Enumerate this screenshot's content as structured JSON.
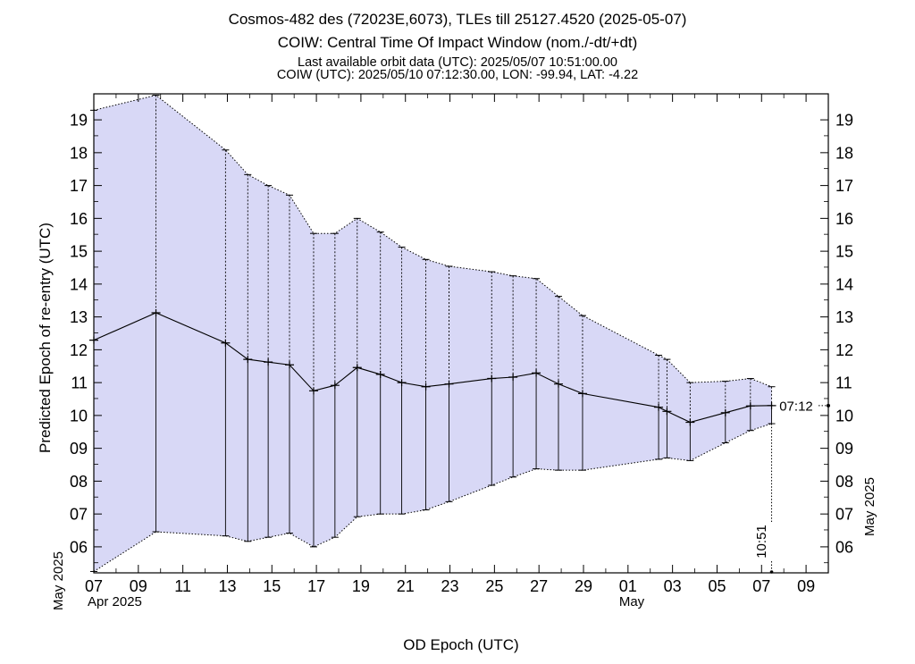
{
  "header": {
    "title": "Cosmos-482 des (72023E,6073), TLEs till 25127.4520 (2025-05-07)",
    "subtitle": "COIW: Central Time Of Impact Window (nom./-dt/+dt)",
    "last_orbit": "Last available orbit data (UTC): 2025/05/07 10:51:00.00",
    "coiw": "COIW (UTC): 2025/05/10 07:12:30.00, LON: -99.94, LAT: -4.22"
  },
  "colors": {
    "window_fill": "#d8d8f6",
    "line": "#000000",
    "background": "#ffffff"
  },
  "chart_data": {
    "type": "line",
    "title": "Cosmos-482 des (72023E,6073), TLEs till 25127.4520 (2025-05-07)",
    "xlabel": "OD Epoch (UTC)",
    "ylabel": "Predicted Epoch of re-entry (UTC)",
    "y2label": "May 2025",
    "y_month_label": "May 2025",
    "x_month_labels": [
      {
        "label": "Apr 2025",
        "at": "2025-04-07"
      },
      {
        "label": "May",
        "at": "2025-05-01"
      }
    ],
    "xlim": [
      "2025-04-07",
      "2025-05-10"
    ],
    "ylim": [
      "2025-05-05 05:00",
      "2025-05-19 19:00"
    ],
    "x_ticks": [
      "07",
      "09",
      "11",
      "13",
      "15",
      "17",
      "19",
      "21",
      "23",
      "25",
      "27",
      "29",
      "01",
      "03",
      "05",
      "07",
      "09"
    ],
    "y_ticks": [
      "06",
      "07",
      "08",
      "09",
      "10",
      "11",
      "12",
      "13",
      "14",
      "15",
      "16",
      "17",
      "18",
      "19"
    ],
    "series": [
      {
        "name": "nom.",
        "values": [
          [
            "2025-04-07 00:00",
            "2025-05-12 07:00"
          ],
          [
            "2025-04-09 19:00",
            "2025-05-13 03:00"
          ],
          [
            "2025-04-12 22:00",
            "2025-05-12 05:00"
          ],
          [
            "2025-04-13 22:00",
            "2025-05-11 17:00"
          ],
          [
            "2025-04-14 20:00",
            "2025-05-11 15:00"
          ],
          [
            "2025-04-15 19:00",
            "2025-05-11 13:00"
          ],
          [
            "2025-04-16 21:00",
            "2025-05-10 18:00"
          ],
          [
            "2025-04-17 20:00",
            "2025-05-10 22:00"
          ],
          [
            "2025-04-18 20:00",
            "2025-05-11 11:00"
          ],
          [
            "2025-04-19 21:00",
            "2025-05-11 06:00"
          ],
          [
            "2025-04-20 20:00",
            "2025-05-11 00:00"
          ],
          [
            "2025-04-21 22:00",
            "2025-05-10 21:00"
          ],
          [
            "2025-04-22 23:00",
            "2025-05-10 23:00"
          ],
          [
            "2025-04-24 21:00",
            "2025-05-11 03:00"
          ],
          [
            "2025-04-25 20:00",
            "2025-05-11 04:00"
          ],
          [
            "2025-04-26 21:00",
            "2025-05-11 07:00"
          ],
          [
            "2025-04-27 21:00",
            "2025-05-10 23:00"
          ],
          [
            "2025-04-28 23:00",
            "2025-05-10 16:00"
          ],
          [
            "2025-05-02 09:00",
            "2025-05-10 06:00"
          ],
          [
            "2025-05-02 18:00",
            "2025-05-10 03:00"
          ],
          [
            "2025-05-03 19:00",
            "2025-05-09 19:00"
          ],
          [
            "2025-05-05 09:00",
            "2025-05-10 02:00"
          ],
          [
            "2025-05-06 12:00",
            "2025-05-10 07:00"
          ],
          [
            "2025-05-07 10:51",
            "2025-05-10 07:12"
          ]
        ]
      },
      {
        "name": "-dt",
        "values": [
          [
            "2025-04-07 00:00",
            "2025-05-05 06:00"
          ],
          [
            "2025-04-09 19:00",
            "2025-05-06 11:00"
          ],
          [
            "2025-04-12 22:00",
            "2025-05-06 08:00"
          ],
          [
            "2025-04-13 22:00",
            "2025-05-06 04:00"
          ],
          [
            "2025-04-14 20:00",
            "2025-05-06 07:00"
          ],
          [
            "2025-04-15 19:00",
            "2025-05-06 10:00"
          ],
          [
            "2025-04-16 21:00",
            "2025-05-06 00:00"
          ],
          [
            "2025-04-17 20:00",
            "2025-05-06 07:00"
          ],
          [
            "2025-04-18 20:00",
            "2025-05-06 22:00"
          ],
          [
            "2025-04-19 21:00",
            "2025-05-07 00:00"
          ],
          [
            "2025-04-20 20:00",
            "2025-05-07 00:00"
          ],
          [
            "2025-04-21 22:00",
            "2025-05-07 03:00"
          ],
          [
            "2025-04-22 23:00",
            "2025-05-07 09:00"
          ],
          [
            "2025-04-24 21:00",
            "2025-05-07 21:00"
          ],
          [
            "2025-04-25 20:00",
            "2025-05-08 03:00"
          ],
          [
            "2025-04-26 21:00",
            "2025-05-08 09:00"
          ],
          [
            "2025-04-27 21:00",
            "2025-05-08 08:00"
          ],
          [
            "2025-04-28 23:00",
            "2025-05-08 08:00"
          ],
          [
            "2025-05-02 09:00",
            "2025-05-08 16:00"
          ],
          [
            "2025-05-02 18:00",
            "2025-05-08 17:00"
          ],
          [
            "2025-05-03 19:00",
            "2025-05-08 15:00"
          ],
          [
            "2025-05-05 09:00",
            "2025-05-09 04:00"
          ],
          [
            "2025-05-06 12:00",
            "2025-05-09 13:00"
          ],
          [
            "2025-05-07 10:51",
            "2025-05-09 18:00"
          ]
        ]
      },
      {
        "name": "+dt",
        "values": [
          [
            "2025-04-07 00:00",
            "2025-05-19 07:00"
          ],
          [
            "2025-04-09 19:00",
            "2025-05-19 18:00"
          ],
          [
            "2025-04-12 22:00",
            "2025-05-18 02:00"
          ],
          [
            "2025-04-13 22:00",
            "2025-05-17 08:00"
          ],
          [
            "2025-04-14 20:00",
            "2025-05-17 00:00"
          ],
          [
            "2025-04-15 19:00",
            "2025-05-16 17:00"
          ],
          [
            "2025-04-16 21:00",
            "2025-05-15 13:00"
          ],
          [
            "2025-04-17 20:00",
            "2025-05-15 13:00"
          ],
          [
            "2025-04-18 20:00",
            "2025-05-16 00:00"
          ],
          [
            "2025-04-19 21:00",
            "2025-05-15 14:00"
          ],
          [
            "2025-04-20 20:00",
            "2025-05-15 03:00"
          ],
          [
            "2025-04-21 22:00",
            "2025-05-14 18:00"
          ],
          [
            "2025-04-22 23:00",
            "2025-05-14 13:00"
          ],
          [
            "2025-04-24 21:00",
            "2025-05-14 09:00"
          ],
          [
            "2025-04-25 20:00",
            "2025-05-14 06:00"
          ],
          [
            "2025-04-26 21:00",
            "2025-05-14 04:00"
          ],
          [
            "2025-04-27 21:00",
            "2025-05-13 15:00"
          ],
          [
            "2025-04-28 23:00",
            "2025-05-13 01:00"
          ],
          [
            "2025-05-02 09:00",
            "2025-05-11 20:00"
          ],
          [
            "2025-05-02 18:00",
            "2025-05-11 17:00"
          ],
          [
            "2025-05-03 19:00",
            "2025-05-11 00:00"
          ],
          [
            "2025-05-05 09:00",
            "2025-05-11 01:00"
          ],
          [
            "2025-05-06 12:00",
            "2025-05-11 03:00"
          ],
          [
            "2025-05-07 10:51",
            "2025-05-10 21:00"
          ]
        ]
      }
    ],
    "annotations": [
      {
        "text": "07:12",
        "x": "2025-05-10 07:12",
        "y": "2025-05-10 07:12"
      },
      {
        "text": "10:51",
        "x": "2025-05-07 10:51",
        "y": "2025-05-07 10:51"
      }
    ],
    "grid": false,
    "legend": "none"
  }
}
